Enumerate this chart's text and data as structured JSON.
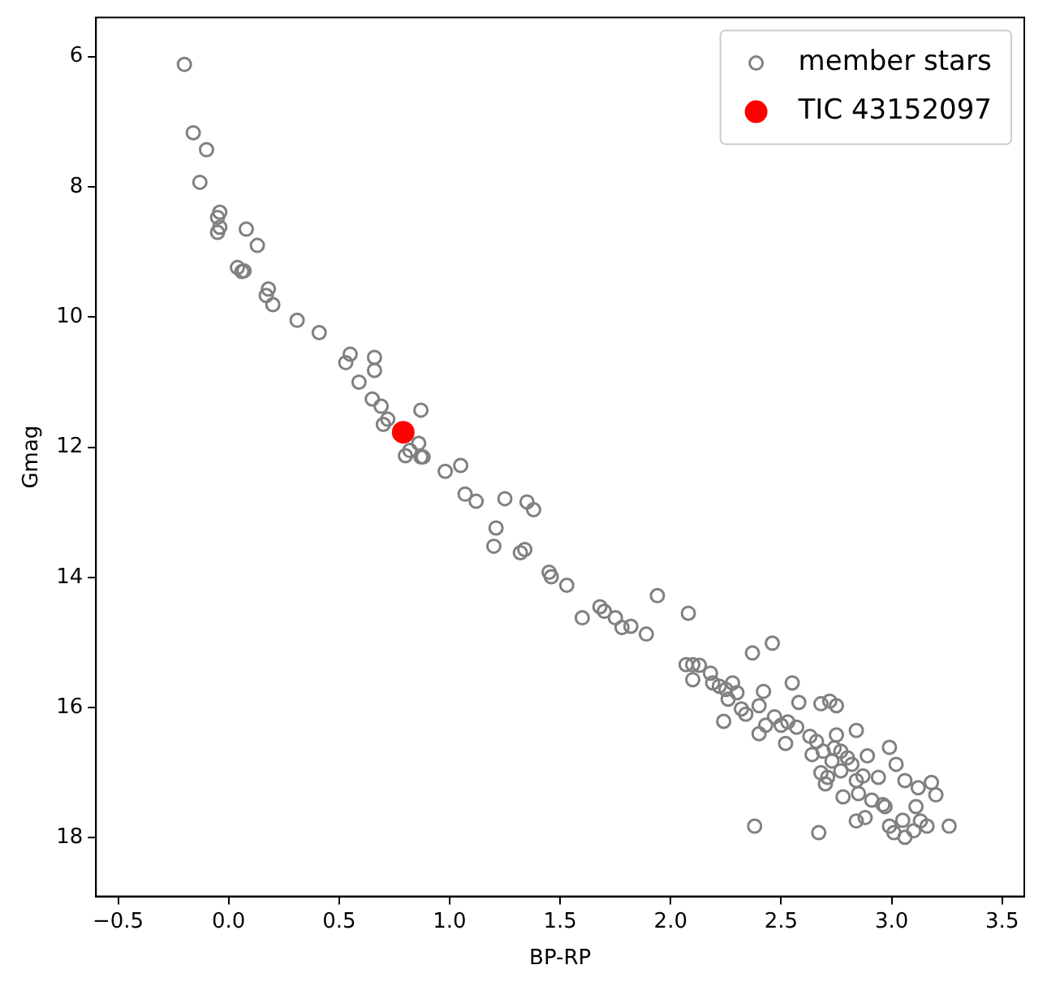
{
  "chart_data": {
    "type": "scatter",
    "xlabel": "BP-RP",
    "ylabel": "Gmag",
    "xlim": [
      -0.6,
      3.6
    ],
    "ylim": [
      18.9,
      5.4
    ],
    "xticks": [
      {
        "value": -0.5,
        "label": "−0.5"
      },
      {
        "value": 0,
        "label": "0.0"
      },
      {
        "value": 0.5,
        "label": "0.5"
      },
      {
        "value": 1,
        "label": "1.0"
      },
      {
        "value": 1.5,
        "label": "1.5"
      },
      {
        "value": 2,
        "label": "2.0"
      },
      {
        "value": 2.5,
        "label": "2.5"
      },
      {
        "value": 3,
        "label": "3.0"
      },
      {
        "value": 3.5,
        "label": "3.5"
      }
    ],
    "yticks": [
      6,
      8,
      10,
      12,
      14,
      16,
      18
    ],
    "grid": false,
    "legend": "top right",
    "series": [
      {
        "name": "member stars",
        "color": "#808080",
        "marker": "circle",
        "x": [
          -0.2,
          -0.16,
          -0.1,
          -0.13,
          -0.04,
          -0.05,
          -0.04,
          -0.05,
          0.08,
          0.13,
          0.04,
          0.06,
          0.07,
          0.18,
          0.17,
          0.2,
          0.31,
          0.41,
          0.55,
          0.53,
          0.66,
          0.66,
          0.59,
          0.65,
          0.69,
          0.87,
          0.72,
          0.7,
          0.86,
          0.82,
          0.8,
          0.87,
          0.88,
          1.05,
          0.98,
          1.07,
          1.12,
          1.25,
          1.35,
          1.38,
          1.21,
          1.2,
          1.32,
          1.34,
          1.45,
          1.46,
          1.53,
          1.6,
          1.68,
          1.7,
          1.75,
          1.78,
          1.82,
          1.89,
          1.94,
          2.08,
          2.37,
          2.46,
          2.07,
          2.1,
          2.13,
          2.1,
          2.18,
          2.19,
          2.22,
          2.28,
          2.3,
          2.25,
          2.26,
          2.42,
          2.55,
          2.58,
          2.68,
          2.72,
          2.75,
          2.24,
          2.32,
          2.34,
          2.4,
          2.4,
          2.43,
          2.47,
          2.5,
          2.53,
          2.52,
          2.57,
          2.63,
          2.64,
          2.66,
          2.69,
          2.75,
          2.84,
          2.77,
          2.89,
          2.99,
          3.02,
          2.68,
          2.71,
          2.7,
          2.77,
          2.82,
          2.84,
          2.87,
          2.78,
          2.85,
          2.94,
          2.91,
          2.96,
          2.97,
          3.06,
          3.12,
          3.18,
          3.2,
          2.84,
          2.88,
          2.99,
          3.01,
          3.05,
          3.06,
          3.1,
          3.11,
          3.13,
          3.16,
          3.26,
          2.38,
          2.67,
          2.74,
          2.8,
          2.73
        ],
        "values": [
          6.12,
          7.17,
          7.43,
          7.93,
          8.39,
          8.47,
          8.62,
          8.7,
          8.65,
          8.9,
          9.24,
          9.3,
          9.29,
          9.57,
          9.67,
          9.81,
          10.05,
          10.24,
          10.57,
          10.7,
          10.62,
          10.82,
          11.0,
          11.26,
          11.37,
          11.43,
          11.57,
          11.65,
          11.94,
          12.05,
          12.13,
          12.15,
          12.15,
          12.28,
          12.37,
          12.72,
          12.83,
          12.79,
          12.84,
          12.96,
          13.24,
          13.52,
          13.62,
          13.57,
          13.92,
          13.99,
          14.12,
          14.62,
          14.45,
          14.52,
          14.62,
          14.77,
          14.75,
          14.87,
          14.28,
          14.55,
          15.16,
          15.01,
          15.34,
          15.34,
          15.35,
          15.57,
          15.47,
          15.62,
          15.67,
          15.62,
          15.77,
          15.72,
          15.87,
          15.75,
          15.62,
          15.92,
          15.94,
          15.9,
          15.97,
          16.21,
          16.02,
          16.1,
          15.97,
          16.4,
          16.27,
          16.14,
          16.27,
          16.22,
          16.55,
          16.3,
          16.44,
          16.72,
          16.52,
          16.67,
          16.42,
          16.35,
          16.67,
          16.74,
          16.61,
          16.87,
          17.0,
          17.07,
          17.17,
          16.97,
          16.87,
          17.12,
          17.05,
          17.37,
          17.32,
          17.07,
          17.42,
          17.49,
          17.52,
          17.12,
          17.23,
          17.15,
          17.34,
          17.74,
          17.69,
          17.82,
          17.92,
          17.73,
          17.99,
          17.89,
          17.52,
          17.74,
          17.82,
          17.82,
          17.82,
          17.92,
          16.62,
          16.77,
          16.82
        ]
      },
      {
        "name": "TIC 43152097",
        "color": "#ff0000",
        "marker": "circle",
        "x": [
          0.79
        ],
        "values": [
          11.77
        ]
      }
    ]
  }
}
